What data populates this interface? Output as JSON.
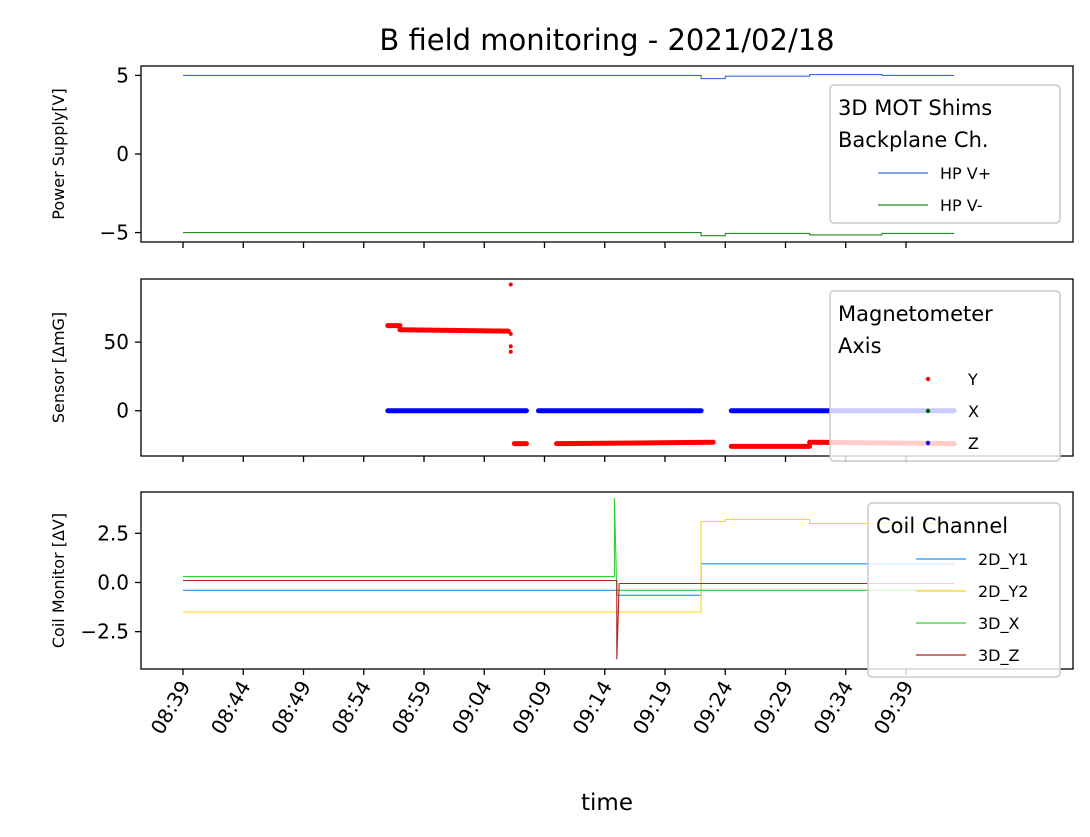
{
  "title": "B field monitoring - 2021/02/18",
  "xlabel": "time",
  "x_ticks": [
    "08:39",
    "08:44",
    "08:49",
    "08:54",
    "08:59",
    "09:04",
    "09:09",
    "09:14",
    "09:19",
    "09:24",
    "09:29",
    "09:34",
    "09:39"
  ],
  "chart_data": [
    {
      "type": "line",
      "ylabel": "Power Supply[V]",
      "yticks": [
        5,
        0,
        -5
      ],
      "ylim": [
        -5.6,
        5.6
      ],
      "legend_title": "3D MOT Shims\nBackplane Ch.",
      "legend_position": "upper right",
      "series": [
        {
          "name": "HP V+",
          "color": "#4169e1",
          "x": [
            "08:39",
            "09:22",
            "09:22",
            "09:24",
            "09:24",
            "09:31",
            "09:31",
            "09:37",
            "09:37",
            "09:43"
          ],
          "y": [
            5.0,
            5.0,
            4.8,
            4.8,
            4.95,
            4.95,
            5.05,
            5.05,
            5.0,
            5.0
          ]
        },
        {
          "name": "HP V-",
          "color": "#228b22",
          "x": [
            "08:39",
            "09:22",
            "09:22",
            "09:24",
            "09:24",
            "09:31",
            "09:31",
            "09:37",
            "09:37",
            "09:43"
          ],
          "y": [
            -5.0,
            -5.0,
            -5.2,
            -5.2,
            -5.05,
            -5.05,
            -5.15,
            -5.15,
            -5.05,
            -5.05
          ]
        }
      ]
    },
    {
      "type": "scatter",
      "ylabel": "Sensor [ΔmG]",
      "yticks": [
        50,
        0
      ],
      "ylim": [
        -33,
        96
      ],
      "legend_title": "Magnetometer\n Axis",
      "legend_position": "upper right",
      "series": [
        {
          "name": "Y",
          "color": "#ff0000",
          "segments": [
            {
              "x": [
                "08:56",
                "08:57"
              ],
              "y": [
                62,
                62
              ]
            },
            {
              "x": [
                "08:57",
                "09:06"
              ],
              "y": [
                59,
                58
              ]
            },
            {
              "x": [
                "09:06.5",
                "09:07.5"
              ],
              "y": [
                -24,
                -24
              ]
            },
            {
              "x": [
                "09:10",
                "09:23"
              ],
              "y": [
                -24,
                -23
              ]
            },
            {
              "x": [
                "09:24.5",
                "09:31"
              ],
              "y": [
                -26,
                -26
              ]
            },
            {
              "x": [
                "09:31",
                "09:43"
              ],
              "y": [
                -23,
                -24
              ]
            }
          ],
          "outliers": [
            [
              "09:06.2",
              92
            ],
            [
              "09:06.2",
              47
            ],
            [
              "09:06.2",
              43
            ],
            [
              "09:06.2",
              56
            ]
          ]
        },
        {
          "name": "X",
          "color": "#006400",
          "segments": []
        },
        {
          "name": "Z",
          "color": "#0000ff",
          "segments": [
            {
              "x": [
                "08:56",
                "09:07.5"
              ],
              "y": [
                0,
                0
              ]
            },
            {
              "x": [
                "09:08.5",
                "09:22"
              ],
              "y": [
                0,
                0
              ]
            },
            {
              "x": [
                "09:24.5",
                "09:43"
              ],
              "y": [
                0,
                0
              ]
            }
          ]
        }
      ]
    },
    {
      "type": "line",
      "ylabel": "Coil Monitor [ΔV]",
      "yticks": [
        2.5,
        0.0,
        -2.5
      ],
      "ylim": [
        -4.4,
        4.6
      ],
      "legend_title": "Coil Channel",
      "legend_position": "upper right",
      "series": [
        {
          "name": "2D_Y1",
          "color": "#1e90ff",
          "x": [
            "08:39",
            "09:15",
            "09:15",
            "09:22",
            "09:22",
            "09:43"
          ],
          "y": [
            -0.4,
            -0.4,
            -0.65,
            -0.65,
            0.95,
            0.95
          ]
        },
        {
          "name": "2D_Y2",
          "color": "#ffd700",
          "x": [
            "08:39",
            "09:22",
            "09:22",
            "09:24",
            "09:24",
            "09:31",
            "09:31",
            "09:43"
          ],
          "y": [
            -1.5,
            -1.5,
            3.1,
            3.1,
            3.2,
            3.2,
            3.0,
            3.0
          ]
        },
        {
          "name": "3D_X",
          "color": "#32cd32",
          "x": [
            "08:39",
            "09:14.8",
            "09:14.8",
            "09:15",
            "09:15",
            "09:43"
          ],
          "y": [
            0.3,
            0.3,
            4.3,
            -0.6,
            -0.4,
            -0.4
          ]
        },
        {
          "name": "3D_Z",
          "color": "#b22222",
          "x": [
            "08:39",
            "09:15",
            "09:15",
            "09:15.2",
            "09:15.2",
            "09:43"
          ],
          "y": [
            0.1,
            0.1,
            -3.9,
            -0.05,
            -0.05,
            -0.05
          ]
        }
      ]
    }
  ]
}
